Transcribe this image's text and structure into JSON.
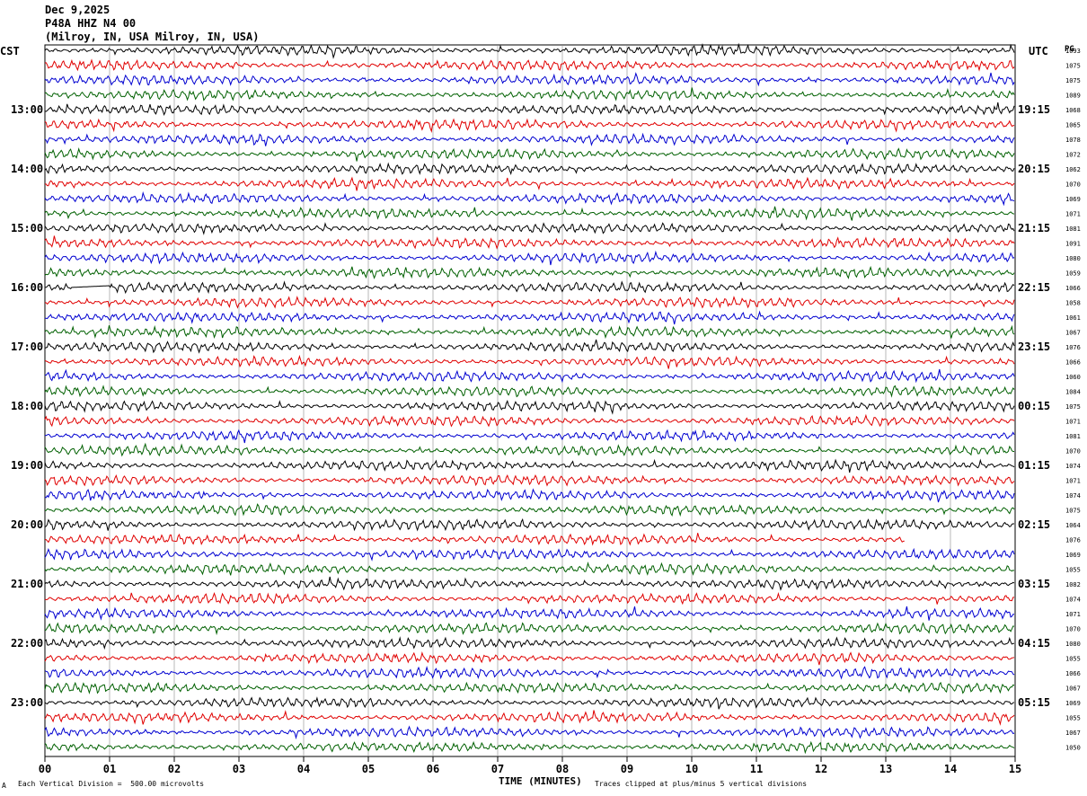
{
  "header": {
    "date": "Dec 9,2025",
    "station": "P48A HHZ N4 00",
    "location": "(Milroy, IN, USA Milroy, IN, USA)"
  },
  "axis_labels": {
    "left_tz": "CST",
    "right_tz": "UTC",
    "right_col": "PG"
  },
  "footer": {
    "xlabel": "TIME (MINUTES)",
    "scale": "Each Vertical Division =  500.00 microvolts",
    "clip": "Traces clipped at plus/minus 5 vertical divisions",
    "mark": "A"
  },
  "trace_colors": [
    "#000000",
    "#e00000",
    "#0000d0",
    "#006000"
  ],
  "chart_data": {
    "type": "line",
    "xlabel": "TIME (MINUTES)",
    "x_ticks": [
      "00",
      "01",
      "02",
      "03",
      "04",
      "05",
      "06",
      "07",
      "08",
      "09",
      "10",
      "11",
      "12",
      "13",
      "14",
      "15"
    ],
    "xlim": [
      0,
      15
    ],
    "left_hour_labels": [
      "13:00",
      "14:00",
      "15:00",
      "16:00",
      "17:00",
      "18:00",
      "19:00",
      "20:00",
      "21:00",
      "22:00",
      "23:00"
    ],
    "right_hour_labels": [
      "19:15",
      "20:15",
      "21:15",
      "22:15",
      "23:15",
      "00:15",
      "01:15",
      "02:15",
      "03:15",
      "04:15",
      "05:15"
    ],
    "row_values": [
      "1093",
      "1075",
      "1075",
      "1089",
      "1068",
      "1065",
      "1078",
      "1072",
      "1062",
      "1070",
      "1069",
      "1071",
      "1081",
      "1091",
      "1080",
      "1059",
      "1066",
      "1058",
      "1061",
      "1067",
      "1076",
      "1066",
      "1060",
      "1084",
      "1075",
      "1071",
      "1081",
      "1070",
      "1074",
      "1071",
      "1074",
      "1075",
      "1064",
      "1076",
      "1069",
      "1055",
      "1082",
      "1074",
      "1071",
      "1070",
      "1080",
      "1055",
      "1066",
      "1067",
      "1069",
      "1055",
      "1067",
      "1050"
    ],
    "num_traces": 48,
    "partial_trace": {
      "row": 33,
      "end_minute": 13.3
    },
    "gap_trace": {
      "row": 16,
      "gap_minutes": [
        0.4,
        1.0
      ]
    }
  }
}
